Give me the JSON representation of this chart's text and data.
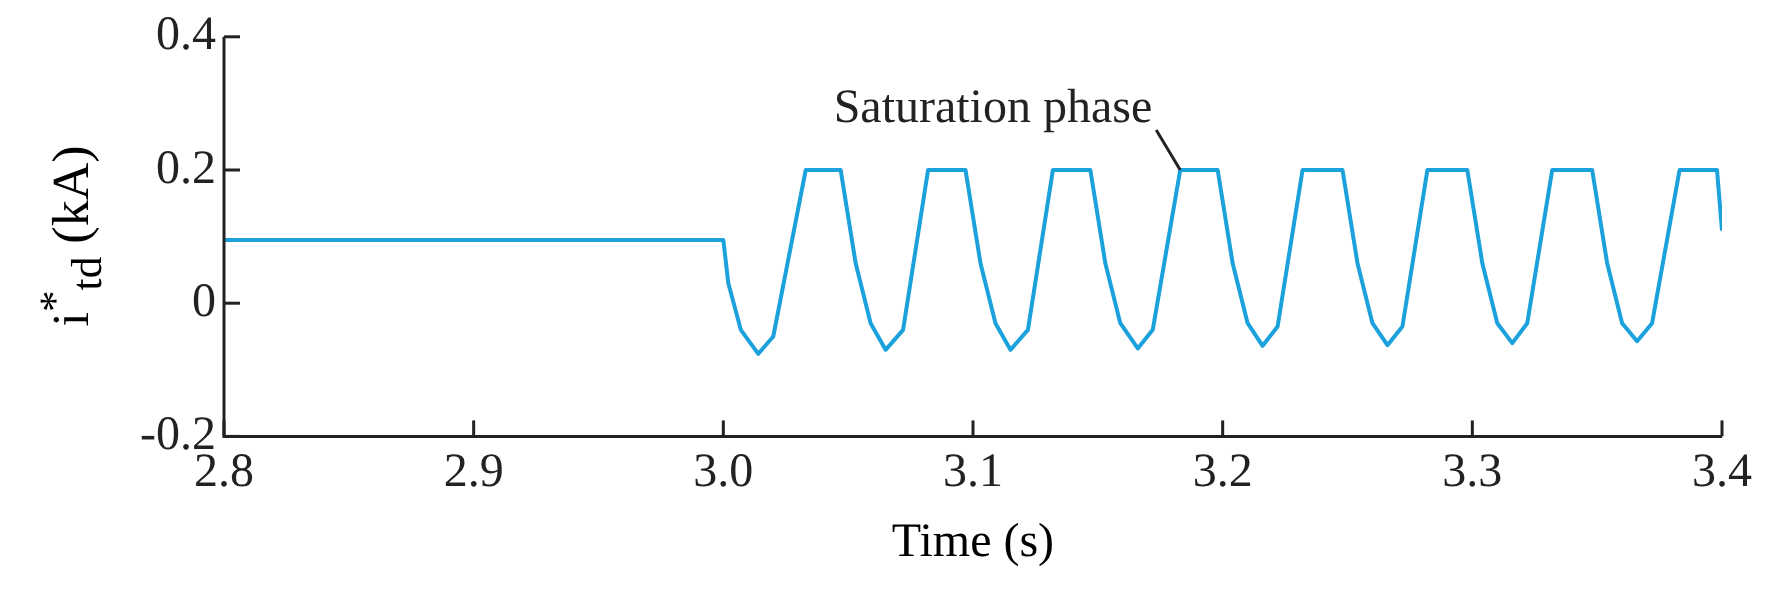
{
  "chart_data": {
    "type": "line",
    "xlabel": "Time (s)",
    "ylabel": "i$^{*}$$_{td}$ (kA)",
    "x": [
      2.8,
      3.0,
      3.002,
      3.007,
      3.014,
      3.02,
      3.033,
      3.047,
      3.053,
      3.059,
      3.065,
      3.072,
      3.082,
      3.097,
      3.103,
      3.109,
      3.115,
      3.122,
      3.132,
      3.147,
      3.153,
      3.159,
      3.166,
      3.172,
      3.183,
      3.198,
      3.204,
      3.21,
      3.216,
      3.222,
      3.232,
      3.248,
      3.254,
      3.26,
      3.266,
      3.272,
      3.282,
      3.298,
      3.304,
      3.31,
      3.316,
      3.322,
      3.332,
      3.348,
      3.354,
      3.36,
      3.366,
      3.372,
      3.383,
      3.398,
      3.4
    ],
    "series": [
      {
        "color": "#1ba1db",
        "values": [
          0.095,
          0.095,
          0.03,
          -0.04,
          -0.076,
          -0.05,
          0.2,
          0.2,
          0.06,
          -0.03,
          -0.07,
          -0.04,
          0.2,
          0.2,
          0.06,
          -0.03,
          -0.07,
          -0.04,
          0.2,
          0.2,
          0.06,
          -0.03,
          -0.068,
          -0.04,
          0.2,
          0.2,
          0.06,
          -0.03,
          -0.064,
          -0.035,
          0.2,
          0.2,
          0.06,
          -0.03,
          -0.063,
          -0.035,
          0.2,
          0.2,
          0.06,
          -0.03,
          -0.06,
          -0.03,
          0.2,
          0.2,
          0.06,
          -0.03,
          -0.057,
          -0.03,
          0.2,
          0.2,
          0.109
        ]
      }
    ],
    "xlim": [
      2.8,
      3.4
    ],
    "xticks": [
      2.8,
      2.9,
      {
        "value": 3,
        "label": "3.0"
      },
      3.1,
      3.2,
      3.3,
      3.4
    ],
    "ylim": [
      -0.2,
      0.4
    ],
    "yticks": [
      -0.2,
      0,
      0.2,
      0.4
    ],
    "grid": false,
    "legend": false,
    "marker": "none",
    "line_style": "solid",
    "annotations": [
      {
        "text": "Saturation phase",
        "x": 3.183,
        "y": 0.2
      }
    ]
  }
}
